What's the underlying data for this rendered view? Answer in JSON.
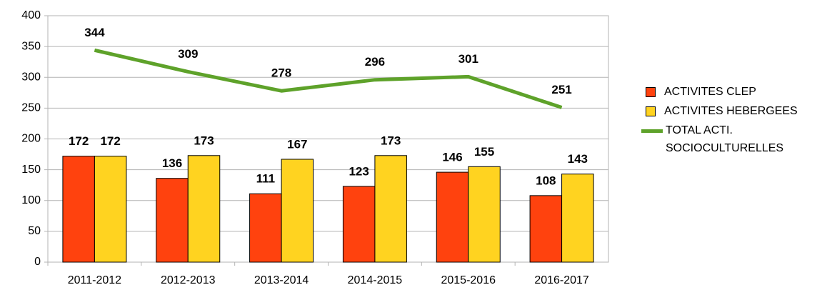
{
  "chart_data": {
    "type": "bar",
    "categories": [
      "2011-2012",
      "2012-2013",
      "2013-2014",
      "2014-2015",
      "2015-2016",
      "2016-2017"
    ],
    "series": [
      {
        "name": "ACTIVITES CLEP",
        "color": "#ff420e",
        "type": "bar",
        "values": [
          172,
          136,
          111,
          123,
          146,
          108
        ]
      },
      {
        "name": "ACTIVITES HEBERGEES",
        "color": "#ffd320",
        "type": "bar",
        "values": [
          172,
          173,
          167,
          173,
          155,
          143
        ]
      },
      {
        "name": "TOTAL ACTI. SOCIOCULTURELLES",
        "color": "#5ea22a",
        "type": "line",
        "values": [
          344,
          309,
          278,
          296,
          301,
          251
        ]
      }
    ],
    "ylim": [
      0,
      400
    ],
    "yticks": [
      0,
      50,
      100,
      150,
      200,
      250,
      300,
      350,
      400
    ],
    "grid": true,
    "legend": "right"
  }
}
